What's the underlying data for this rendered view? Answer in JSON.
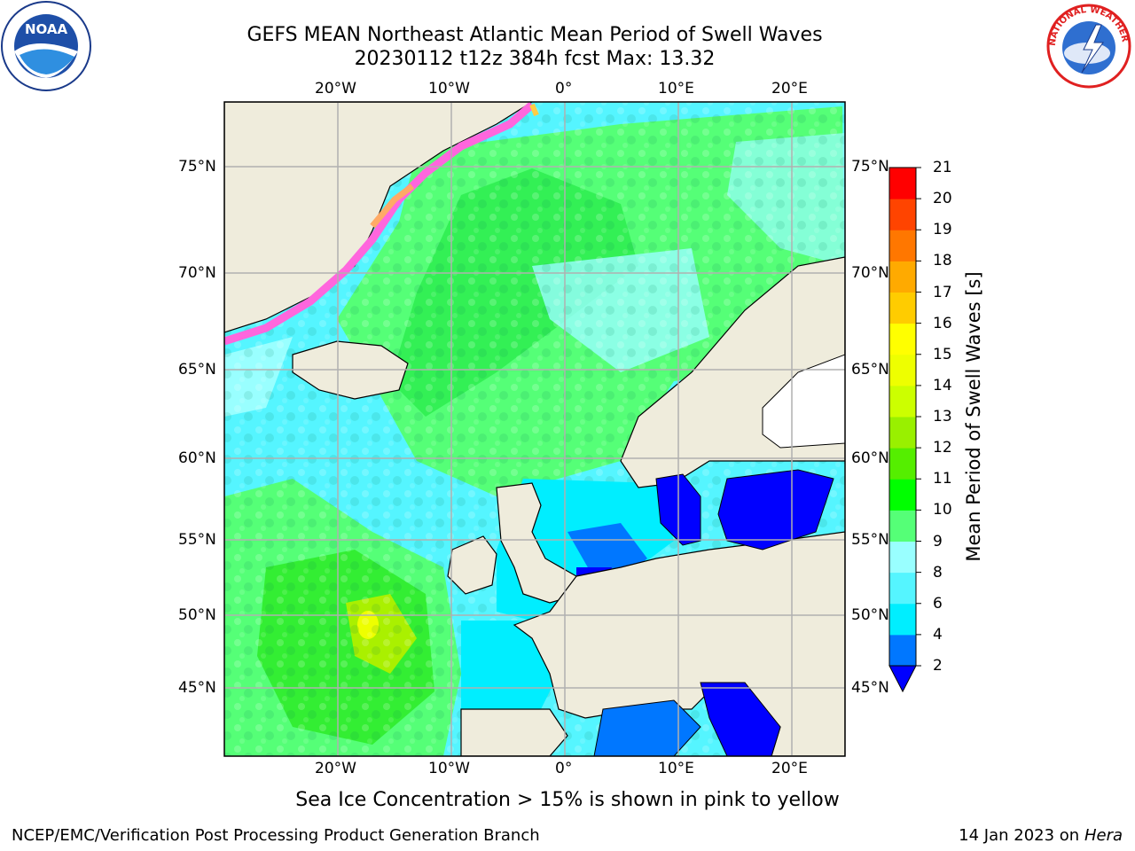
{
  "header": {
    "title_line1": "GEFS MEAN Northeast Atlantic Mean Period of Swell Waves",
    "title_line2": "20230112 t12z 384h fcst   Max: 13.32"
  },
  "map": {
    "region": "Northeast Atlantic",
    "lon_labels": [
      "20°W",
      "10°W",
      "0°",
      "10°E",
      "20°E"
    ],
    "lat_labels": [
      "75°N",
      "70°N",
      "65°N",
      "60°N",
      "55°N",
      "50°N",
      "45°N"
    ]
  },
  "chart_data": {
    "type": "heatmap",
    "variable": "Mean Period of Swell Waves [s]",
    "max_value": 13.32,
    "colorbar": {
      "label": "Mean Period of Swell Waves [s]",
      "levels": [
        2,
        4,
        6,
        8,
        9,
        10,
        11,
        12,
        13,
        14,
        15,
        16,
        17,
        18,
        19,
        20,
        21
      ],
      "colors": [
        "#0000ff",
        "#0077ff",
        "#00eeff",
        "#55f5ff",
        "#99ffff",
        "#55ff77",
        "#00ff00",
        "#55ee00",
        "#99f000",
        "#ccff00",
        "#eeff00",
        "#ffff00",
        "#ffcc00",
        "#ffaa00",
        "#ff7700",
        "#ff4400",
        "#ff0000"
      ],
      "extend": "min"
    },
    "xlim_deg": [
      -30,
      25
    ],
    "ylim_deg": [
      41,
      79
    ]
  },
  "footnote": "Sea Ice Concentration > 15% is shown in pink to yellow",
  "credit": "NCEP/EMC/Verification Post Processing Product Generation Branch",
  "date_stamp": {
    "date": "14 Jan 2023 on ",
    "machine": "Hera"
  },
  "logos": {
    "left": "NOAA",
    "right": "NATIONAL WEATHER SERVICE"
  }
}
